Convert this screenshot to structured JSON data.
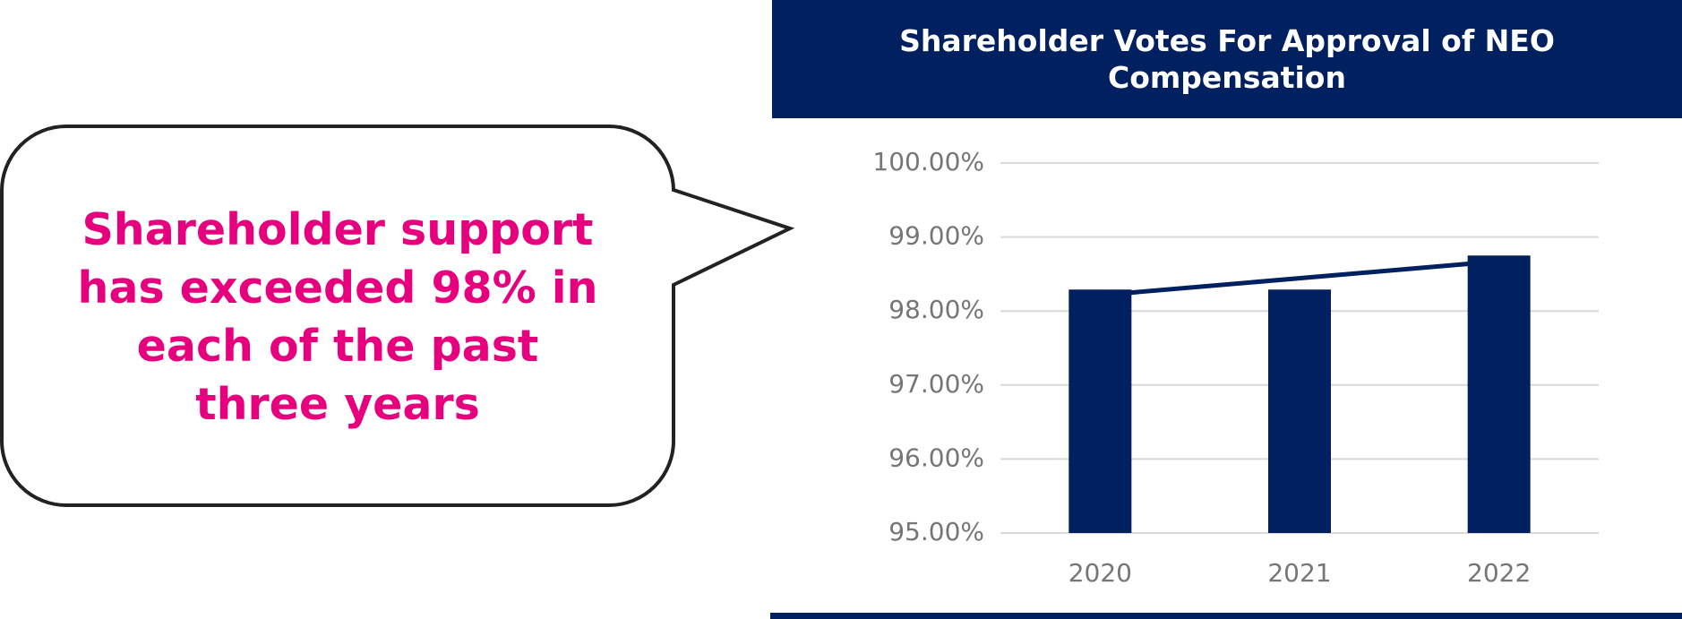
{
  "callout": {
    "lines": [
      "Shareholder support",
      "has exceeded 98% in",
      "each of the past",
      "three years"
    ]
  },
  "chart_data": {
    "type": "bar",
    "title": "Shareholder Votes For Approval of NEO Compensation",
    "categories": [
      "2020",
      "2021",
      "2022"
    ],
    "series": [
      {
        "color": "#002060",
        "values": [
          98.29,
          98.29,
          98.75
        ]
      }
    ],
    "trendline": true,
    "ylim": [
      95,
      100
    ],
    "yticks": [
      {
        "value": 95,
        "label": "95.00%"
      },
      {
        "value": 96,
        "label": "96.00%"
      },
      {
        "value": 97,
        "label": "97.00%"
      },
      {
        "value": 98,
        "label": "98.00%"
      },
      {
        "value": 99,
        "label": "99.00%"
      },
      {
        "value": 100,
        "label": "100.00%"
      }
    ],
    "grid": true
  }
}
